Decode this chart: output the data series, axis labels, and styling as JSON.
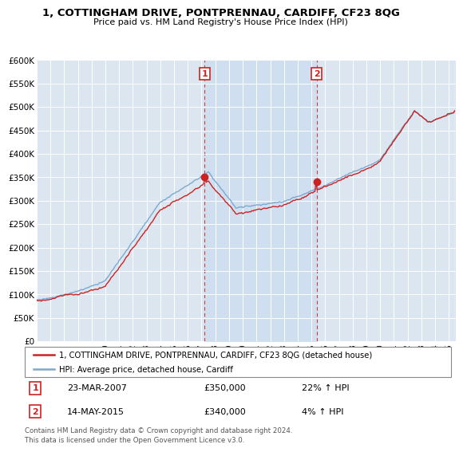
{
  "title1": "1, COTTINGHAM DRIVE, PONTPRENNAU, CARDIFF, CF23 8QG",
  "title2": "Price paid vs. HM Land Registry's House Price Index (HPI)",
  "legend_line1": "1, COTTINGHAM DRIVE, PONTPRENNAU, CARDIFF, CF23 8QG (detached house)",
  "legend_line2": "HPI: Average price, detached house, Cardiff",
  "sale1_date": "23-MAR-2007",
  "sale1_price": "£350,000",
  "sale1_hpi": "22% ↑ HPI",
  "sale2_date": "14-MAY-2015",
  "sale2_price": "£340,000",
  "sale2_hpi": "4% ↑ HPI",
  "footer": "Contains HM Land Registry data © Crown copyright and database right 2024.\nThis data is licensed under the Open Government Licence v3.0.",
  "red_color": "#cc2222",
  "blue_color": "#7aaad0",
  "fill_color": "#ccddf0",
  "background_color": "#dce6f1",
  "grid_color": "#ffffff",
  "ylim": [
    0,
    600000
  ],
  "ytick_labels": [
    "£0",
    "£50K",
    "£100K",
    "£150K",
    "£200K",
    "£250K",
    "£300K",
    "£350K",
    "£400K",
    "£450K",
    "£500K",
    "£550K",
    "£600K"
  ],
  "ytick_values": [
    0,
    50000,
    100000,
    150000,
    200000,
    250000,
    300000,
    350000,
    400000,
    450000,
    500000,
    550000,
    600000
  ],
  "sale1_year": 2007.22,
  "sale2_year": 2015.37,
  "sale1_price_val": 350000,
  "sale2_price_val": 340000
}
